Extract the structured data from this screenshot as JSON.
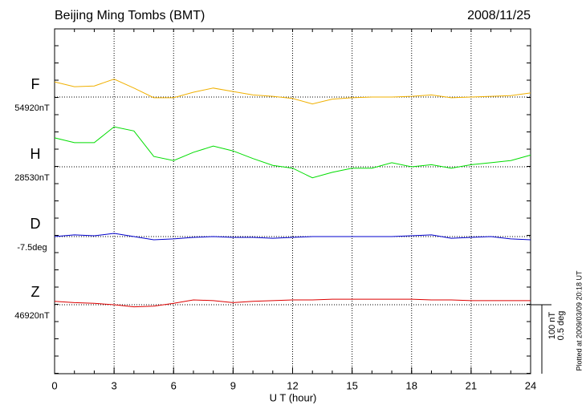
{
  "chart_data": {
    "type": "line",
    "title": "Beijing Ming Tombs (BMT)",
    "date": "2008/11/25",
    "x_label": "U T (hour)",
    "plotted_note": "Plotted at 2009/03/09 20:18 UT",
    "xlim": [
      0,
      24
    ],
    "xticks": [
      0,
      3,
      6,
      9,
      12,
      15,
      18,
      21,
      24
    ],
    "grid": true,
    "scale_bar": {
      "value": 100,
      "label": "100 nT"
    },
    "scale_bar_y2": {
      "value": 0.5,
      "label": "0.5 deg"
    },
    "x": [
      0,
      1,
      2,
      3,
      4,
      5,
      6,
      7,
      8,
      9,
      10,
      11,
      12,
      13,
      14,
      15,
      16,
      17,
      18,
      19,
      20,
      21,
      22,
      23,
      24
    ],
    "series": [
      {
        "name": "F",
        "baseline": "54920nT",
        "color": "#f0b000",
        "values": [
          22,
          15,
          16,
          26,
          13,
          -1,
          -1,
          7,
          13,
          8,
          3,
          1,
          -2,
          -10,
          -3,
          -1,
          0,
          0,
          1,
          3,
          -1,
          0,
          1,
          2,
          6
        ]
      },
      {
        "name": "H",
        "baseline": "28530nT",
        "color": "#00dd00",
        "values": [
          42,
          35,
          35,
          58,
          52,
          15,
          9,
          21,
          30,
          23,
          12,
          2,
          -2,
          -16,
          -8,
          -2,
          -2,
          6,
          0,
          3,
          -2,
          3,
          6,
          9,
          17
        ]
      },
      {
        "name": "D",
        "baseline": "-7.5deg",
        "color": "#0000cc",
        "axis": "y2",
        "values": [
          0,
          0.012,
          0.006,
          0.023,
          0,
          -0.023,
          -0.017,
          -0.006,
          0,
          -0.006,
          -0.006,
          -0.012,
          -0.006,
          0,
          0,
          0,
          0,
          0,
          0.006,
          0.012,
          -0.012,
          -0.006,
          0,
          -0.017,
          -0.023
        ]
      },
      {
        "name": "Z",
        "baseline": "46920nT",
        "color": "#dd0000",
        "values": [
          5,
          3,
          2,
          0,
          -3,
          -2,
          2,
          7,
          6,
          3,
          5,
          6,
          7,
          7,
          8,
          8,
          8,
          8,
          8,
          7,
          7,
          6,
          6,
          6,
          6
        ]
      }
    ]
  }
}
